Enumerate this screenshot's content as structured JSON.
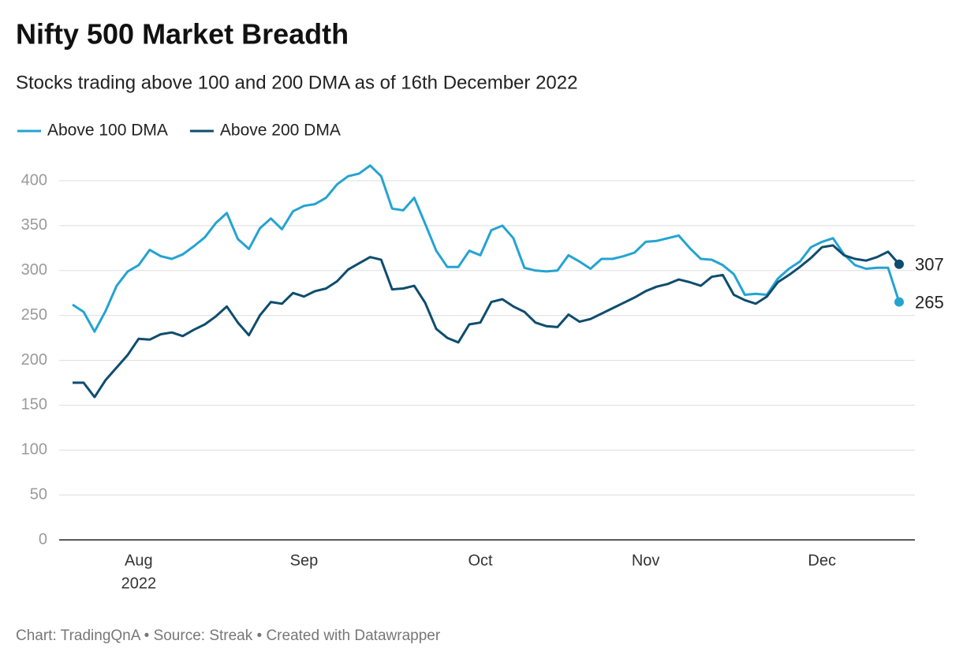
{
  "chart_data": {
    "type": "line",
    "title": "Nifty 500 Market Breadth",
    "subtitle": "Stocks trading above 100 and 200 DMA as of 16th December 2022",
    "source": "Chart: TradingQnA • Source: Streak • Created with Datawrapper",
    "categories": [
      null,
      null,
      null,
      null,
      null,
      null,
      "Aug",
      null,
      null,
      null,
      null,
      null,
      null,
      null,
      null,
      null,
      null,
      null,
      null,
      null,
      null,
      "Sep",
      null,
      null,
      null,
      null,
      null,
      null,
      null,
      null,
      null,
      null,
      null,
      null,
      null,
      null,
      null,
      "Oct",
      null,
      null,
      null,
      null,
      null,
      null,
      null,
      null,
      null,
      null,
      null,
      null,
      null,
      null,
      "Nov",
      null,
      null,
      null,
      null,
      null,
      null,
      null,
      null,
      null,
      null,
      null,
      null,
      null,
      null,
      null,
      "Dec",
      null,
      null,
      null,
      null,
      null,
      null,
      null
    ],
    "x_year_label": "2022",
    "series": [
      {
        "name": "Above 100 DMA",
        "color": "#24a3d3",
        "values": [
          262,
          254,
          232,
          255,
          283,
          299,
          306,
          323,
          316,
          313,
          318,
          327,
          337,
          353,
          364,
          335,
          324,
          347,
          358,
          346,
          366,
          372,
          374,
          381,
          396,
          405,
          408,
          417,
          405,
          369,
          367,
          381,
          352,
          322,
          304,
          304,
          322,
          317,
          345,
          350,
          336,
          303,
          300,
          299,
          300,
          317,
          310,
          302,
          313,
          313,
          316,
          320,
          332,
          333,
          336,
          339,
          325,
          313,
          312,
          306,
          296,
          273,
          274,
          273,
          291,
          302,
          310,
          326,
          332,
          336,
          318,
          306,
          302,
          303,
          303,
          265
        ]
      },
      {
        "name": "Above 200 DMA",
        "color": "#0e4d6e",
        "values": [
          175,
          175,
          159,
          178,
          192,
          206,
          224,
          223,
          229,
          231,
          227,
          234,
          240,
          249,
          260,
          242,
          228,
          250,
          265,
          263,
          275,
          271,
          277,
          280,
          288,
          301,
          308,
          315,
          312,
          279,
          280,
          283,
          264,
          235,
          225,
          220,
          240,
          242,
          265,
          268,
          260,
          254,
          242,
          238,
          237,
          251,
          243,
          246,
          252,
          258,
          264,
          270,
          277,
          282,
          285,
          290,
          287,
          283,
          293,
          295,
          273,
          267,
          263,
          271,
          287,
          295,
          304,
          314,
          326,
          328,
          317,
          313,
          311,
          315,
          321,
          307
        ]
      }
    ],
    "ylim": [
      0,
      400
    ],
    "yticks": [
      0,
      50,
      100,
      150,
      200,
      250,
      300,
      350,
      400
    ],
    "grid": true
  }
}
